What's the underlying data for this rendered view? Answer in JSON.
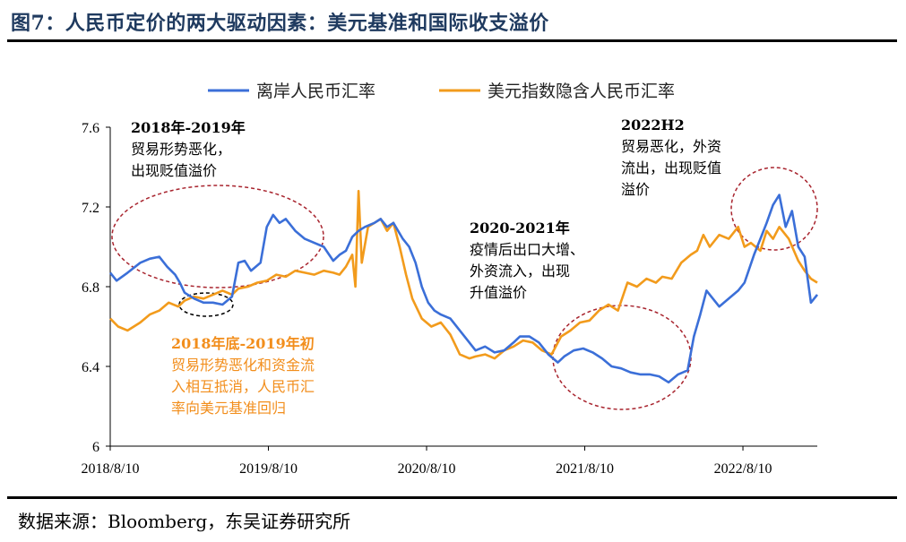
{
  "figure": {
    "title": "图7：人民币定价的两大驱动因素：美元基准和国际收支溢价",
    "source": "数据来源：Bloomberg，东吴证券研究所"
  },
  "chart_data": {
    "type": "line",
    "title": "",
    "xlabel": "",
    "ylabel": "",
    "ylim": [
      6,
      7.6
    ],
    "yticks": [
      "6",
      "6.4",
      "6.8",
      "7.2",
      "7.6"
    ],
    "xlim": [
      2018.61,
      2023.08
    ],
    "xticks": [
      {
        "label": "2018/8/10",
        "x": 2018.61
      },
      {
        "label": "2019/8/10",
        "x": 2019.61
      },
      {
        "label": "2020/8/10",
        "x": 2020.61
      },
      {
        "label": "2021/8/10",
        "x": 2021.61
      },
      {
        "label": "2022/8/10",
        "x": 2022.61
      }
    ],
    "grid": false,
    "legend": "top-center",
    "series": [
      {
        "name": "离岸人民币汇率",
        "color": "#3b6fd8",
        "points": [
          [
            2018.61,
            6.87
          ],
          [
            2018.65,
            6.83
          ],
          [
            2018.72,
            6.87
          ],
          [
            2018.8,
            6.92
          ],
          [
            2018.86,
            6.94
          ],
          [
            2018.92,
            6.95
          ],
          [
            2018.97,
            6.9
          ],
          [
            2019.02,
            6.86
          ],
          [
            2019.05,
            6.82
          ],
          [
            2019.08,
            6.77
          ],
          [
            2019.14,
            6.74
          ],
          [
            2019.2,
            6.72
          ],
          [
            2019.26,
            6.72
          ],
          [
            2019.32,
            6.71
          ],
          [
            2019.38,
            6.75
          ],
          [
            2019.42,
            6.92
          ],
          [
            2019.46,
            6.93
          ],
          [
            2019.5,
            6.88
          ],
          [
            2019.56,
            6.92
          ],
          [
            2019.6,
            7.1
          ],
          [
            2019.64,
            7.16
          ],
          [
            2019.68,
            7.12
          ],
          [
            2019.72,
            7.14
          ],
          [
            2019.78,
            7.08
          ],
          [
            2019.84,
            7.04
          ],
          [
            2019.9,
            7.02
          ],
          [
            2019.96,
            7.0
          ],
          [
            2020.02,
            6.93
          ],
          [
            2020.06,
            6.96
          ],
          [
            2020.1,
            6.98
          ],
          [
            2020.14,
            7.05
          ],
          [
            2020.18,
            7.08
          ],
          [
            2020.22,
            7.1
          ],
          [
            2020.28,
            7.12
          ],
          [
            2020.32,
            7.14
          ],
          [
            2020.36,
            7.1
          ],
          [
            2020.4,
            7.12
          ],
          [
            2020.46,
            7.04
          ],
          [
            2020.5,
            7.0
          ],
          [
            2020.54,
            6.92
          ],
          [
            2020.58,
            6.8
          ],
          [
            2020.62,
            6.72
          ],
          [
            2020.66,
            6.68
          ],
          [
            2020.7,
            6.66
          ],
          [
            2020.76,
            6.64
          ],
          [
            2020.82,
            6.58
          ],
          [
            2020.88,
            6.52
          ],
          [
            2020.92,
            6.48
          ],
          [
            2020.98,
            6.5
          ],
          [
            2021.04,
            6.47
          ],
          [
            2021.1,
            6.48
          ],
          [
            2021.16,
            6.52
          ],
          [
            2021.2,
            6.55
          ],
          [
            2021.26,
            6.55
          ],
          [
            2021.32,
            6.52
          ],
          [
            2021.38,
            6.46
          ],
          [
            2021.44,
            6.42
          ],
          [
            2021.48,
            6.45
          ],
          [
            2021.54,
            6.48
          ],
          [
            2021.6,
            6.49
          ],
          [
            2021.66,
            6.47
          ],
          [
            2021.72,
            6.44
          ],
          [
            2021.78,
            6.4
          ],
          [
            2021.84,
            6.39
          ],
          [
            2021.9,
            6.37
          ],
          [
            2021.96,
            6.36
          ],
          [
            2022.02,
            6.36
          ],
          [
            2022.08,
            6.35
          ],
          [
            2022.14,
            6.32
          ],
          [
            2022.2,
            6.36
          ],
          [
            2022.26,
            6.38
          ],
          [
            2022.3,
            6.55
          ],
          [
            2022.34,
            6.66
          ],
          [
            2022.38,
            6.78
          ],
          [
            2022.42,
            6.74
          ],
          [
            2022.46,
            6.7
          ],
          [
            2022.52,
            6.74
          ],
          [
            2022.58,
            6.78
          ],
          [
            2022.62,
            6.82
          ],
          [
            2022.68,
            6.96
          ],
          [
            2022.72,
            7.04
          ],
          [
            2022.76,
            7.12
          ],
          [
            2022.8,
            7.21
          ],
          [
            2022.84,
            7.26
          ],
          [
            2022.88,
            7.1
          ],
          [
            2022.92,
            7.18
          ],
          [
            2022.96,
            7.0
          ],
          [
            2023.0,
            6.95
          ],
          [
            2023.04,
            6.72
          ],
          [
            2023.08,
            6.76
          ]
        ]
      },
      {
        "name": "美元指数隐含人民币汇率",
        "color": "#f29b1c",
        "points": [
          [
            2018.61,
            6.64
          ],
          [
            2018.66,
            6.6
          ],
          [
            2018.72,
            6.58
          ],
          [
            2018.8,
            6.62
          ],
          [
            2018.86,
            6.66
          ],
          [
            2018.92,
            6.68
          ],
          [
            2018.98,
            6.72
          ],
          [
            2019.04,
            6.7
          ],
          [
            2019.08,
            6.73
          ],
          [
            2019.14,
            6.75
          ],
          [
            2019.2,
            6.74
          ],
          [
            2019.26,
            6.76
          ],
          [
            2019.32,
            6.78
          ],
          [
            2019.38,
            6.76
          ],
          [
            2019.42,
            6.79
          ],
          [
            2019.48,
            6.8
          ],
          [
            2019.54,
            6.82
          ],
          [
            2019.6,
            6.83
          ],
          [
            2019.66,
            6.86
          ],
          [
            2019.72,
            6.85
          ],
          [
            2019.78,
            6.88
          ],
          [
            2019.84,
            6.87
          ],
          [
            2019.9,
            6.86
          ],
          [
            2019.96,
            6.88
          ],
          [
            2020.02,
            6.87
          ],
          [
            2020.06,
            6.86
          ],
          [
            2020.1,
            6.9
          ],
          [
            2020.14,
            6.96
          ],
          [
            2020.16,
            6.8
          ],
          [
            2020.18,
            7.28
          ],
          [
            2020.2,
            6.92
          ],
          [
            2020.24,
            7.1
          ],
          [
            2020.28,
            7.12
          ],
          [
            2020.32,
            7.14
          ],
          [
            2020.36,
            7.08
          ],
          [
            2020.4,
            7.12
          ],
          [
            2020.44,
            7.0
          ],
          [
            2020.48,
            6.86
          ],
          [
            2020.52,
            6.74
          ],
          [
            2020.58,
            6.64
          ],
          [
            2020.64,
            6.6
          ],
          [
            2020.7,
            6.62
          ],
          [
            2020.76,
            6.56
          ],
          [
            2020.82,
            6.46
          ],
          [
            2020.88,
            6.44
          ],
          [
            2020.92,
            6.45
          ],
          [
            2020.98,
            6.46
          ],
          [
            2021.04,
            6.44
          ],
          [
            2021.1,
            6.48
          ],
          [
            2021.16,
            6.5
          ],
          [
            2021.22,
            6.53
          ],
          [
            2021.28,
            6.52
          ],
          [
            2021.34,
            6.48
          ],
          [
            2021.4,
            6.46
          ],
          [
            2021.46,
            6.55
          ],
          [
            2021.52,
            6.58
          ],
          [
            2021.58,
            6.62
          ],
          [
            2021.64,
            6.63
          ],
          [
            2021.7,
            6.68
          ],
          [
            2021.76,
            6.71
          ],
          [
            2021.82,
            6.68
          ],
          [
            2021.88,
            6.82
          ],
          [
            2021.94,
            6.8
          ],
          [
            2022.0,
            6.84
          ],
          [
            2022.06,
            6.82
          ],
          [
            2022.1,
            6.85
          ],
          [
            2022.16,
            6.84
          ],
          [
            2022.22,
            6.92
          ],
          [
            2022.28,
            6.96
          ],
          [
            2022.32,
            6.98
          ],
          [
            2022.36,
            7.06
          ],
          [
            2022.4,
            7.0
          ],
          [
            2022.46,
            7.06
          ],
          [
            2022.52,
            7.04
          ],
          [
            2022.58,
            7.1
          ],
          [
            2022.62,
            7.0
          ],
          [
            2022.66,
            7.02
          ],
          [
            2022.72,
            6.98
          ],
          [
            2022.76,
            7.08
          ],
          [
            2022.8,
            7.04
          ],
          [
            2022.84,
            7.1
          ],
          [
            2022.9,
            7.04
          ],
          [
            2022.96,
            6.93
          ],
          [
            2023.0,
            6.88
          ],
          [
            2023.04,
            6.84
          ],
          [
            2023.08,
            6.82
          ]
        ]
      }
    ],
    "annotations": [
      {
        "id": "a1",
        "title": "2018年-2019年",
        "lines": [
          "贸易形势恶化，",
          "出现贬值溢价"
        ],
        "color": "dark"
      },
      {
        "id": "a2",
        "title": "2018年底-2019年初",
        "lines": [
          "贸易形势恶化和资金流",
          "入相互抵消，人民币汇",
          "率向美元基准回归"
        ],
        "color": "orange"
      },
      {
        "id": "a3",
        "title": "2020-2021年",
        "lines": [
          "疫情后出口大增、",
          "外资流入，出现",
          "升值溢价"
        ],
        "color": "dark"
      },
      {
        "id": "a4",
        "title": "2022H2",
        "lines": [
          "贸易恶化，外资",
          "流出，出现贬值",
          "溢价"
        ],
        "color": "dark"
      }
    ]
  }
}
